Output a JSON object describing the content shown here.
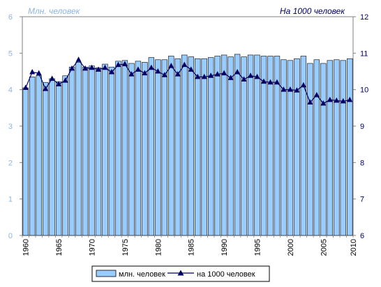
{
  "chart_data": {
    "type": "bar+line",
    "x": [
      1960,
      1961,
      1962,
      1963,
      1964,
      1965,
      1966,
      1967,
      1968,
      1969,
      1970,
      1971,
      1972,
      1973,
      1974,
      1975,
      1976,
      1977,
      1978,
      1979,
      1980,
      1981,
      1982,
      1983,
      1984,
      1985,
      1986,
      1987,
      1988,
      1989,
      1990,
      1991,
      1992,
      1993,
      1994,
      1995,
      1996,
      1997,
      1998,
      1999,
      2000,
      2001,
      2002,
      2003,
      2004,
      2005,
      2006,
      2007,
      2008,
      2009
    ],
    "x_tick_labels": [
      "1960",
      "1965",
      "1970",
      "1975",
      "1980",
      "1985",
      "1990",
      "1995",
      "2000",
      "2005",
      "2010"
    ],
    "x_tick_values": [
      1960,
      1965,
      1970,
      1975,
      1980,
      1985,
      1990,
      1995,
      2000,
      2005,
      2010
    ],
    "left_axis": {
      "unit_label": "Млн. человек",
      "ylim": [
        0,
        6
      ],
      "ticks": [
        "0",
        "1",
        "2",
        "3",
        "4",
        "5",
        "6"
      ]
    },
    "right_axis": {
      "unit_label": "На 1000 человек",
      "ylim": [
        6,
        12
      ],
      "ticks": [
        "6",
        "7",
        "8",
        "9",
        "10",
        "11",
        "12"
      ]
    },
    "series": [
      {
        "name": "млн. человек",
        "kind": "bar",
        "axis": "left",
        "color": "#99ccff",
        "values": [
          4.05,
          4.35,
          4.38,
          4.2,
          4.3,
          4.22,
          4.38,
          4.62,
          4.75,
          4.62,
          4.65,
          4.6,
          4.7,
          4.62,
          4.78,
          4.8,
          4.72,
          4.78,
          4.75,
          4.88,
          4.82,
          4.82,
          4.92,
          4.85,
          4.95,
          4.9,
          4.85,
          4.85,
          4.88,
          4.92,
          4.95,
          4.9,
          4.97,
          4.9,
          4.95,
          4.95,
          4.92,
          4.92,
          4.92,
          4.82,
          4.8,
          4.85,
          4.92,
          4.72,
          4.82,
          4.72,
          4.8,
          4.82,
          4.8,
          4.85
        ]
      },
      {
        "name": "на 1000 человек",
        "kind": "line",
        "axis": "right",
        "color": "#000066",
        "values": [
          10.05,
          10.48,
          10.45,
          10.02,
          10.3,
          10.15,
          10.25,
          10.58,
          10.82,
          10.58,
          10.6,
          10.55,
          10.6,
          10.48,
          10.68,
          10.7,
          10.42,
          10.55,
          10.45,
          10.6,
          10.5,
          10.4,
          10.65,
          10.42,
          10.68,
          10.55,
          10.35,
          10.35,
          10.38,
          10.42,
          10.45,
          10.32,
          10.48,
          10.28,
          10.38,
          10.35,
          10.22,
          10.2,
          10.2,
          10.0,
          10.0,
          9.98,
          10.12,
          9.65,
          9.85,
          9.62,
          9.72,
          9.7,
          9.68,
          9.72
        ]
      }
    ],
    "grid": false,
    "legend_position": "bottom"
  }
}
